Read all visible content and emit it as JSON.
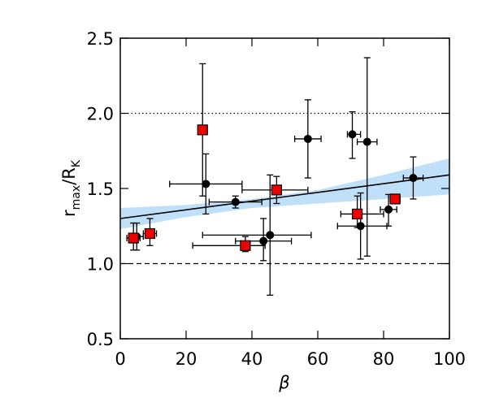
{
  "chart_data": {
    "type": "scatter",
    "xlabel": "β",
    "ylabel_parts": [
      "r",
      "max",
      "/R",
      "K"
    ],
    "xlim": [
      0,
      100
    ],
    "xticks": [
      0,
      20,
      40,
      60,
      80,
      100
    ],
    "ylim": [
      0.5,
      2.5
    ],
    "yticks": [
      0.5,
      {
        "value": 1.0,
        "label": "1.0"
      },
      1.5,
      {
        "value": 2.0,
        "label": "2.0"
      },
      2.5
    ],
    "hlines": [
      {
        "value": 2.0,
        "style": "dotted"
      },
      {
        "value": 1.0,
        "style": "dashed"
      }
    ],
    "fit": {
      "x": [
        0,
        100
      ],
      "y": [
        1.3,
        1.59
      ],
      "color": "#000000",
      "band_x": [
        0,
        20,
        40,
        60,
        80,
        100
      ],
      "band_low": [
        1.23,
        1.31,
        1.37,
        1.4,
        1.43,
        1.46
      ],
      "band_high": [
        1.37,
        1.39,
        1.43,
        1.49,
        1.59,
        1.7
      ],
      "band_color": "#bfe0f8"
    },
    "series": [
      {
        "marker": "circle",
        "color": "#000000",
        "x": [
          5,
          26,
          35,
          43.5,
          45.5,
          57,
          70.5,
          73,
          75,
          81.5,
          89
        ],
        "values": [
          1.18,
          1.53,
          1.41,
          1.15,
          1.19,
          1.83,
          1.86,
          1.25,
          1.81,
          1.36,
          1.57
        ],
        "x_low": [
          3,
          15,
          27,
          35,
          25,
          53,
          69,
          66,
          72,
          79,
          86
        ],
        "x_high": [
          7,
          37,
          43,
          52,
          58,
          61,
          73,
          81,
          78,
          84,
          92
        ],
        "y_low": [
          1.09,
          1.33,
          1.37,
          1.02,
          0.79,
          1.57,
          1.7,
          1.03,
          1.05,
          1.25,
          1.43
        ],
        "y_high": [
          1.27,
          1.73,
          1.45,
          1.3,
          1.59,
          2.09,
          2.01,
          1.47,
          2.37,
          1.46,
          1.71
        ]
      },
      {
        "marker": "square",
        "color": "#ee0000",
        "x": [
          4,
          9,
          25,
          38,
          47.5,
          72,
          83.5
        ],
        "values": [
          1.17,
          1.2,
          1.89,
          1.12,
          1.49,
          1.33,
          1.43
        ],
        "x_low": [
          2,
          7,
          24,
          22,
          37,
          67,
          82
        ],
        "x_high": [
          6,
          11,
          26,
          44,
          57,
          80,
          85
        ],
        "y_low": [
          1.09,
          1.12,
          1.45,
          1.08,
          1.4,
          1.24,
          1.4
        ],
        "y_high": [
          1.27,
          1.3,
          2.33,
          1.18,
          1.58,
          1.45,
          1.46
        ]
      }
    ]
  }
}
